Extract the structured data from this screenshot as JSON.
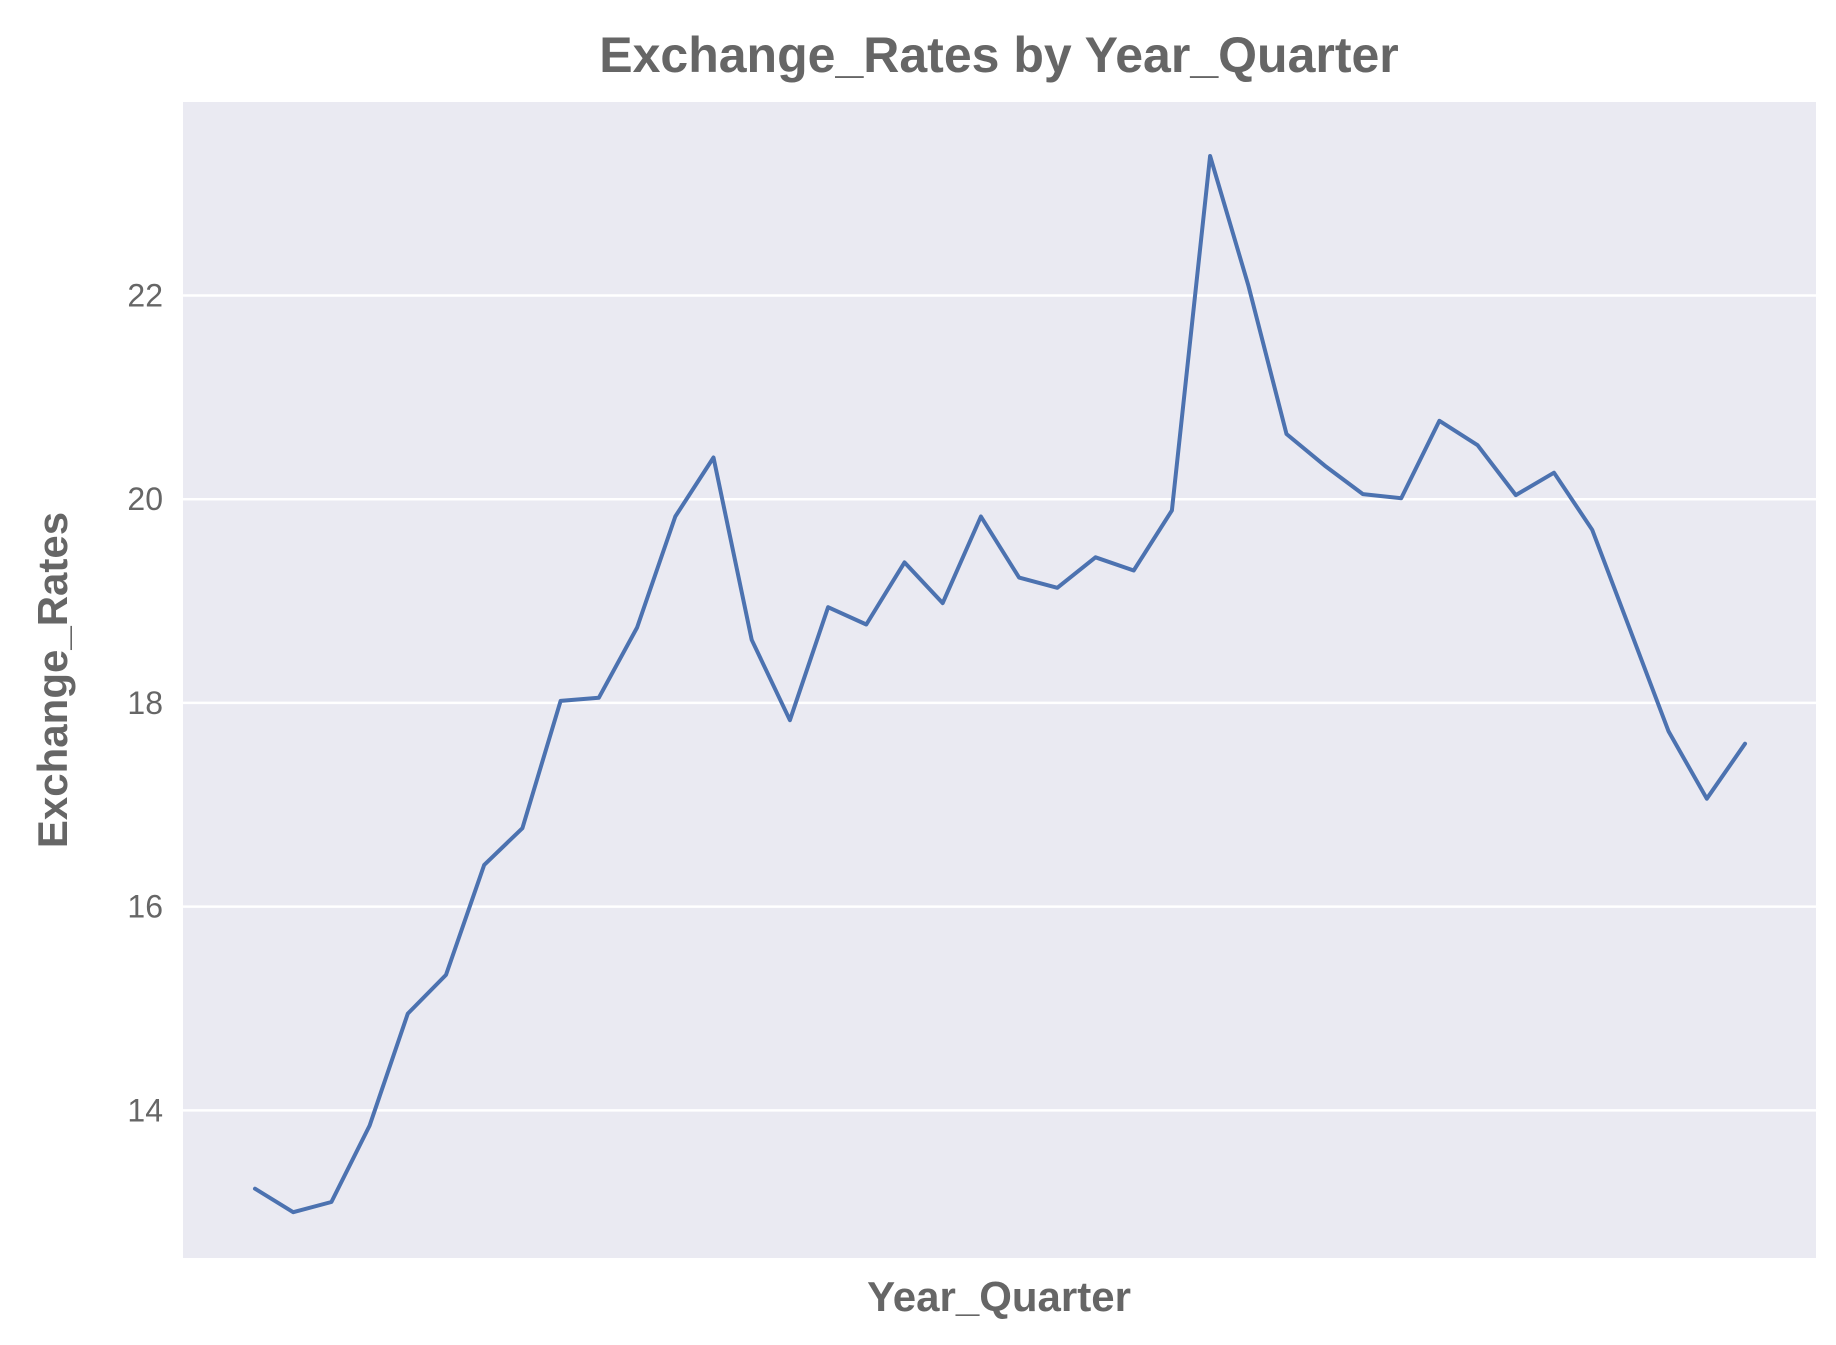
{
  "chart_data": {
    "type": "line",
    "title": "Exchange_Rates by Year_Quarter",
    "xlabel": "Year_Quarter",
    "ylabel": "Exchange_Rates",
    "x_tick_labels": [],
    "yticks": [
      "14",
      "16",
      "18",
      "20",
      "22"
    ],
    "ylim": [
      12.55,
      23.9
    ],
    "grid": true,
    "legend": "none",
    "colors": {
      "background": "#eaeaf2",
      "grid": "#ffffff",
      "line": "#4c72b0",
      "text": "#666666"
    },
    "series": [
      {
        "values": [
          13.23,
          13.0,
          13.1,
          13.85,
          14.95,
          15.33,
          16.41,
          16.77,
          18.02,
          18.05,
          18.74,
          19.83,
          20.41,
          18.62,
          17.83,
          18.94,
          18.77,
          19.38,
          18.98,
          19.83,
          19.23,
          19.13,
          19.43,
          19.3,
          19.89,
          23.37,
          22.1,
          20.64,
          20.33,
          20.05,
          20.01,
          20.77,
          20.53,
          20.04,
          20.26,
          19.7,
          18.71,
          17.72,
          17.06,
          17.6
        ]
      }
    ]
  }
}
